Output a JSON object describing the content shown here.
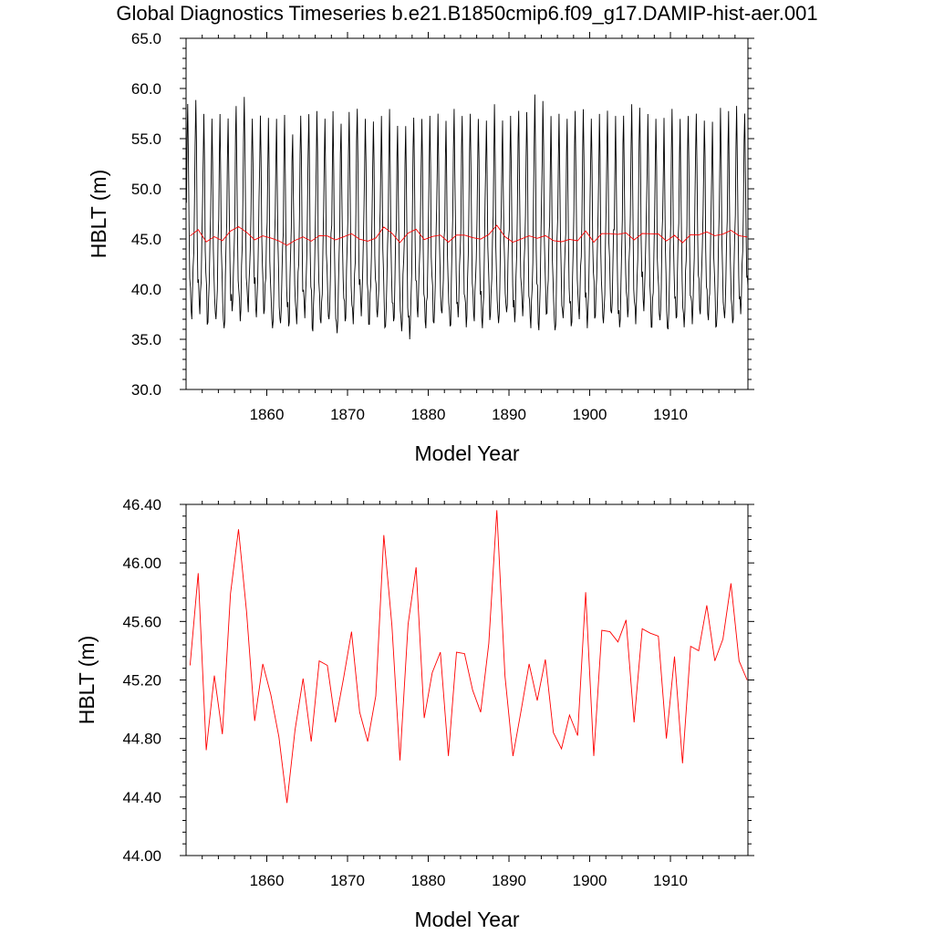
{
  "title": "Global Diagnostics Timeseries b.e21.B1850cmip6.f09_g17.DAMIP-hist-aer.001",
  "colors": {
    "monthly": "#000000",
    "annual": "#ff0000",
    "axes": "#000000"
  },
  "chart_data": [
    {
      "type": "line",
      "xlabel": "Model Year",
      "ylabel": "HBLT (m)",
      "xlim": [
        1850,
        1919.6
      ],
      "ylim": [
        30.0,
        65.0
      ],
      "xticks": [
        1860,
        1870,
        1880,
        1890,
        1900,
        1910
      ],
      "yticks": [
        "30.0",
        "35.0",
        "40.0",
        "45.0",
        "50.0",
        "55.0",
        "60.0",
        "65.0"
      ],
      "grid": false,
      "legend": "none",
      "series": [
        {
          "style": "monthly",
          "color": "#000000",
          "x_start": 1850.04,
          "x_step": 0.08333,
          "annual_cycle_template": [
            0,
            0.55,
            0.95,
            0.45,
            -0.25,
            -0.6,
            -0.75,
            -0.9,
            -1.0,
            -0.85,
            -0.6,
            -0.3
          ],
          "peaks": [
            59.0,
            59.4,
            58.0,
            57.5,
            58.0,
            57.5,
            58.8,
            59.7,
            57.5,
            57.8,
            57.6,
            57.5,
            57.9,
            55.9,
            57.8,
            58.0,
            58.3,
            57.5,
            58.3,
            57.0,
            58.2,
            58.5,
            57.5,
            57.2,
            57.8,
            58.5,
            56.8,
            56.8,
            57.6,
            57.5,
            57.8,
            58.0,
            57.3,
            58.5,
            57.8,
            58.0,
            57.5,
            57.3,
            59.0,
            57.3,
            57.8,
            58.3,
            58.2,
            60.0,
            59.3,
            57.8,
            58.0,
            57.5,
            58.3,
            58.5,
            57.5,
            58.0,
            58.3,
            57.8,
            57.8,
            59.0,
            58.6,
            58.0,
            57.5,
            57.6,
            58.5,
            57.5,
            57.8,
            58.0,
            57.3,
            57.2,
            58.6,
            58.3,
            58.8,
            58.0
          ],
          "troughs": [
            37.0,
            37.5,
            36.7,
            37.0,
            36.1,
            37.8,
            36.8,
            37.7,
            37.2,
            37.9,
            36.1,
            36.6,
            36.3,
            36.5,
            37.1,
            35.8,
            36.6,
            37.0,
            35.6,
            36.8,
            36.5,
            37.3,
            36.5,
            37.2,
            36.3,
            36.8,
            35.8,
            35.0,
            37.2,
            36.1,
            36.6,
            37.6,
            36.3,
            37.2,
            36.2,
            36.8,
            36.1,
            37.4,
            36.6,
            37.7,
            36.7,
            37.3,
            36.1,
            35.9,
            37.6,
            35.9,
            37.1,
            36.3,
            37.0,
            36.1,
            37.3,
            36.6,
            37.6,
            36.2,
            37.2,
            36.5,
            37.8,
            36.2,
            36.9,
            36.0,
            37.1,
            36.2,
            36.5,
            37.5,
            36.9,
            36.3,
            37.1,
            36.6,
            37.5,
            38.0
          ]
        },
        {
          "style": "annual",
          "color": "#ff0000",
          "x": [
            1850.5,
            1851.5,
            1852.5,
            1853.5,
            1854.5,
            1855.5,
            1856.5,
            1857.5,
            1858.5,
            1859.5,
            1860.5,
            1861.5,
            1862.5,
            1863.5,
            1864.5,
            1865.5,
            1866.5,
            1867.5,
            1868.5,
            1869.5,
            1870.5,
            1871.5,
            1872.5,
            1873.5,
            1874.5,
            1875.5,
            1876.5,
            1877.5,
            1878.5,
            1879.5,
            1880.5,
            1881.5,
            1882.5,
            1883.5,
            1884.5,
            1885.5,
            1886.5,
            1887.5,
            1888.5,
            1889.5,
            1890.5,
            1891.5,
            1892.5,
            1893.5,
            1894.5,
            1895.5,
            1896.5,
            1897.5,
            1898.5,
            1899.5,
            1900.5,
            1901.5,
            1902.5,
            1903.5,
            1904.5,
            1905.5,
            1906.5,
            1907.5,
            1908.5,
            1909.5,
            1910.5,
            1911.5,
            1912.5,
            1913.5,
            1914.5,
            1915.5,
            1916.5,
            1917.5,
            1918.5,
            1919.5
          ],
          "values": [
            45.3,
            45.93,
            44.72,
            45.23,
            44.83,
            45.79,
            46.23,
            45.66,
            44.92,
            45.31,
            45.1,
            44.81,
            44.36,
            44.86,
            45.21,
            44.78,
            45.33,
            45.3,
            44.91,
            45.21,
            45.53,
            44.98,
            44.78,
            45.09,
            46.19,
            45.57,
            44.65,
            45.58,
            45.97,
            44.94,
            45.25,
            45.39,
            44.68,
            45.39,
            45.38,
            45.13,
            44.98,
            45.45,
            46.36,
            45.23,
            44.68,
            44.99,
            45.31,
            45.06,
            45.34,
            44.84,
            44.73,
            44.96,
            44.82,
            45.8,
            44.68,
            45.54,
            45.53,
            45.46,
            45.61,
            44.91,
            45.55,
            45.52,
            45.5,
            44.8,
            45.36,
            44.63,
            45.43,
            45.4,
            45.71,
            45.33,
            45.48,
            45.86,
            45.33,
            45.2
          ]
        }
      ]
    },
    {
      "type": "line",
      "xlabel": "Model Year",
      "ylabel": "HBLT (m)",
      "xlim": [
        1850,
        1919.6
      ],
      "ylim": [
        44.0,
        46.4
      ],
      "xticks": [
        1860,
        1870,
        1880,
        1890,
        1900,
        1910
      ],
      "yticks": [
        "44.00",
        "44.40",
        "44.80",
        "45.20",
        "45.60",
        "46.00",
        "46.40"
      ],
      "grid": false,
      "legend": "none",
      "series": [
        {
          "style": "annual",
          "color": "#ff0000",
          "x": [
            1850.5,
            1851.5,
            1852.5,
            1853.5,
            1854.5,
            1855.5,
            1856.5,
            1857.5,
            1858.5,
            1859.5,
            1860.5,
            1861.5,
            1862.5,
            1863.5,
            1864.5,
            1865.5,
            1866.5,
            1867.5,
            1868.5,
            1869.5,
            1870.5,
            1871.5,
            1872.5,
            1873.5,
            1874.5,
            1875.5,
            1876.5,
            1877.5,
            1878.5,
            1879.5,
            1880.5,
            1881.5,
            1882.5,
            1883.5,
            1884.5,
            1885.5,
            1886.5,
            1887.5,
            1888.5,
            1889.5,
            1890.5,
            1891.5,
            1892.5,
            1893.5,
            1894.5,
            1895.5,
            1896.5,
            1897.5,
            1898.5,
            1899.5,
            1900.5,
            1901.5,
            1902.5,
            1903.5,
            1904.5,
            1905.5,
            1906.5,
            1907.5,
            1908.5,
            1909.5,
            1910.5,
            1911.5,
            1912.5,
            1913.5,
            1914.5,
            1915.5,
            1916.5,
            1917.5,
            1918.5,
            1919.5
          ],
          "values": [
            45.3,
            45.93,
            44.72,
            45.23,
            44.83,
            45.79,
            46.23,
            45.66,
            44.92,
            45.31,
            45.1,
            44.81,
            44.36,
            44.86,
            45.21,
            44.78,
            45.33,
            45.3,
            44.91,
            45.21,
            45.53,
            44.98,
            44.78,
            45.09,
            46.19,
            45.57,
            44.65,
            45.58,
            45.97,
            44.94,
            45.25,
            45.39,
            44.68,
            45.39,
            45.38,
            45.13,
            44.98,
            45.45,
            46.36,
            45.23,
            44.68,
            44.99,
            45.31,
            45.06,
            45.34,
            44.84,
            44.73,
            44.96,
            44.82,
            45.8,
            44.68,
            45.54,
            45.53,
            45.46,
            45.61,
            44.91,
            45.55,
            45.52,
            45.5,
            44.8,
            45.36,
            44.63,
            45.43,
            45.4,
            45.71,
            45.33,
            45.48,
            45.86,
            45.33,
            45.2
          ]
        }
      ]
    }
  ]
}
